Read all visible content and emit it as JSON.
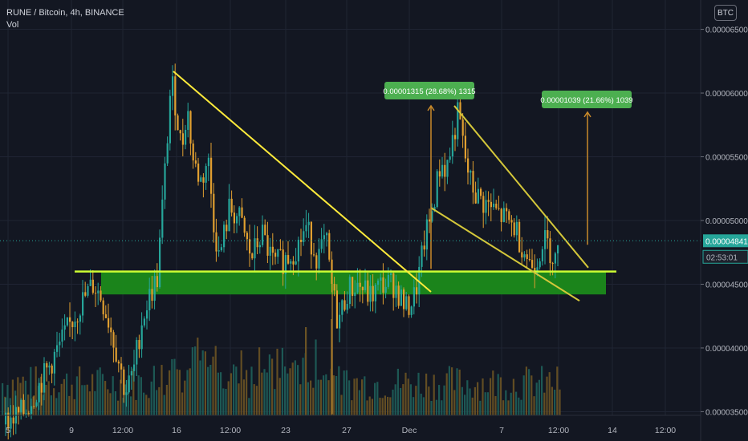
{
  "header": {
    "symbol_line": "RUNE / Bitcoin, 4h, BINANCE",
    "volume_label": "Vol",
    "currency_button": "BTC"
  },
  "chart_data": {
    "type": "candlestick",
    "symbol": "RUNE / Bitcoin",
    "interval": "4h",
    "exchange": "BINANCE",
    "y_axis": {
      "ticks": [
        "0.00006500",
        "0.00006000",
        "0.00005500",
        "0.00005000",
        "0.00004500",
        "0.00004000",
        "0.00003500"
      ],
      "ylim": [
        3.27e-05,
        6.73e-05
      ]
    },
    "x_axis": {
      "ticks": [
        "5",
        "9",
        "12:00",
        "16",
        "12:00",
        "23",
        "27",
        "Dec",
        "7",
        "12:00",
        "14",
        "12:00"
      ]
    },
    "last_price": {
      "label": "0.00004841",
      "value": 4.841e-05,
      "color": "#26a69a"
    },
    "countdown": "02:53:01",
    "volume_label": "Vol",
    "price_path": [
      [
        0,
        3.4e-05
      ],
      [
        30,
        3.5e-05
      ],
      [
        60,
        3.85e-05
      ],
      [
        80,
        4.1e-05
      ],
      [
        100,
        4.35e-05
      ],
      [
        115,
        4.5e-05
      ],
      [
        125,
        4.4e-05
      ],
      [
        135,
        4.2e-05
      ],
      [
        145,
        3.95e-05
      ],
      [
        155,
        3.65e-05
      ],
      [
        165,
        3.8e-05
      ],
      [
        175,
        4.2e-05
      ],
      [
        185,
        4.4e-05
      ],
      [
        195,
        4.55e-05
      ],
      [
        200,
        5e-05
      ],
      [
        207,
        5.6e-05
      ],
      [
        212,
        6.1e-05
      ],
      [
        218,
        5.9e-05
      ],
      [
        225,
        5.55e-05
      ],
      [
        232,
        5.9e-05
      ],
      [
        240,
        5.45e-05
      ],
      [
        250,
        5.3e-05
      ],
      [
        258,
        5.5e-05
      ],
      [
        265,
        5e-05
      ],
      [
        272,
        4.7e-05
      ],
      [
        285,
        5.1e-05
      ],
      [
        298,
        5e-05
      ],
      [
        312,
        4.7e-05
      ],
      [
        325,
        4.9e-05
      ],
      [
        340,
        4.65e-05
      ],
      [
        355,
        4.7e-05
      ],
      [
        370,
        4.8e-05
      ],
      [
        380,
        4.95e-05
      ],
      [
        395,
        4.7e-05
      ],
      [
        405,
        4.85e-05
      ],
      [
        412,
        4.5e-05
      ],
      [
        420,
        4.2e-05
      ],
      [
        432,
        4.45e-05
      ],
      [
        445,
        4.5e-05
      ],
      [
        460,
        4.4e-05
      ],
      [
        475,
        4.5e-05
      ],
      [
        490,
        4.5e-05
      ],
      [
        505,
        4.3e-05
      ],
      [
        515,
        4.4e-05
      ],
      [
        522,
        4.6e-05
      ],
      [
        528,
        4.85e-05
      ],
      [
        535,
        5e-05
      ],
      [
        542,
        5.25e-05
      ],
      [
        548,
        5.45e-05
      ],
      [
        555,
        5.4e-05
      ],
      [
        562,
        5.6e-05
      ],
      [
        570,
        5.85e-05
      ],
      [
        578,
        5.5e-05
      ],
      [
        585,
        5.3e-05
      ],
      [
        592,
        5.2e-05
      ],
      [
        600,
        5.15e-05
      ],
      [
        610,
        5.1e-05
      ],
      [
        620,
        5.05e-05
      ],
      [
        630,
        5e-05
      ],
      [
        640,
        4.95e-05
      ],
      [
        650,
        4.8e-05
      ],
      [
        660,
        4.65e-05
      ],
      [
        668,
        4.7e-05
      ],
      [
        675,
        4.85e-05
      ],
      [
        682,
        4.8e-05
      ],
      [
        690,
        4.7e-05
      ],
      [
        697,
        4.75e-05
      ]
    ],
    "annotations": {
      "labels": [
        {
          "text": "0.00001315 (28.68%) 1315",
          "color": "#4caf50"
        },
        {
          "text": "0.00001039 (21.66%) 1039",
          "color": "#4caf50"
        }
      ],
      "support_zone": [
        4.42e-05,
        4.6e-05
      ],
      "support_line": 4.6e-05,
      "trendlines": [
        {
          "from": [
            216,
            6.17e-05
          ],
          "to": [
            537,
            4.44e-05
          ],
          "color": "#ffeb3b"
        },
        {
          "from": [
            566,
            5.9e-05
          ],
          "to": [
            733,
            4.63e-05
          ],
          "color": "#d4c73a"
        },
        {
          "from": [
            537,
            5.1e-05
          ],
          "to": [
            722,
            4.37e-05
          ],
          "color": "#d4c73a"
        }
      ],
      "measure_arrows": [
        {
          "x": 537,
          "from": 4.62e-05,
          "to": 5.9e-05
        },
        {
          "x": 732,
          "from": 4.81e-05,
          "to": 5.85e-05
        }
      ]
    },
    "colors": {
      "background": "#131722",
      "up": "#26a69a",
      "down": "#e09f30",
      "support": "#ccff33",
      "zone": "#1b8a1b"
    }
  }
}
